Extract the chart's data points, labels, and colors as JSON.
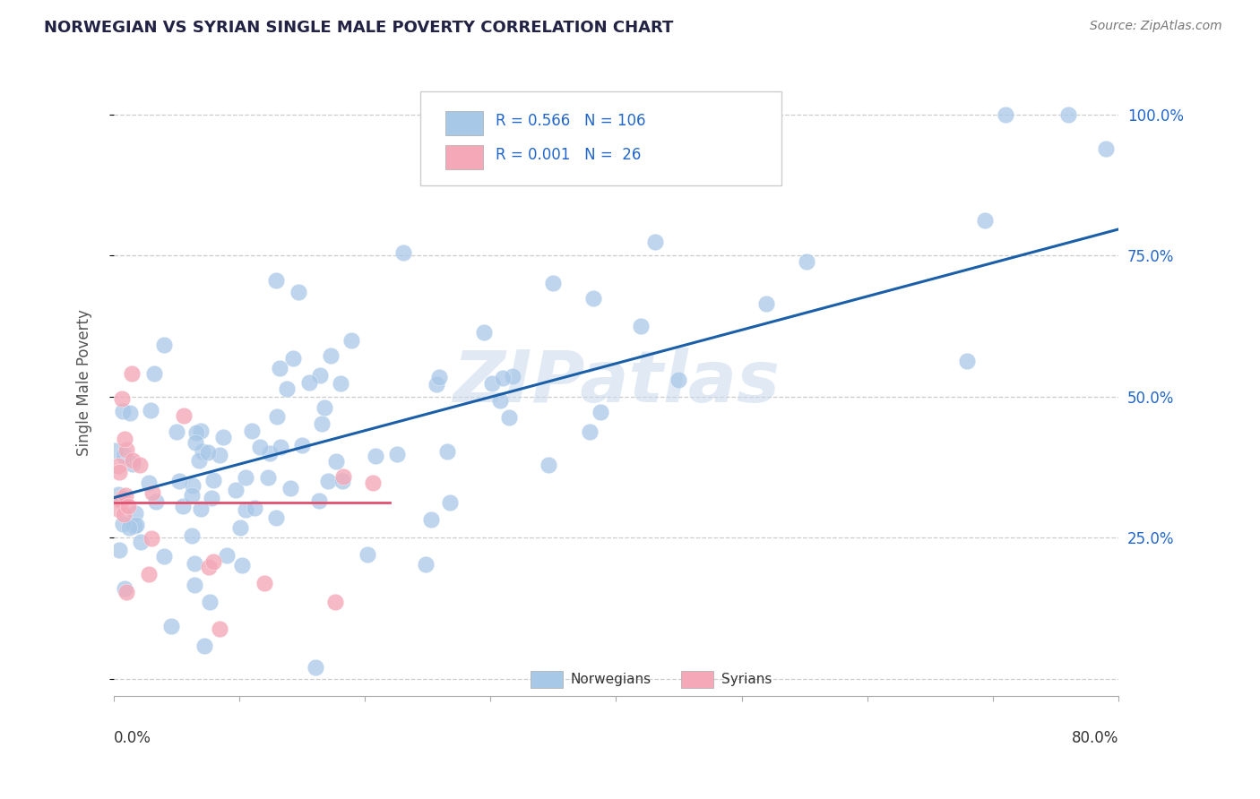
{
  "title": "NORWEGIAN VS SYRIAN SINGLE MALE POVERTY CORRELATION CHART",
  "source_text": "Source: ZipAtlas.com",
  "ylabel": "Single Male Poverty",
  "watermark": "ZIPatlas",
  "norwegian_R": 0.566,
  "norwegian_N": 106,
  "syrian_R": 0.001,
  "syrian_N": 26,
  "norwegian_color": "#a8c8e8",
  "norwegian_line_color": "#1a5fa8",
  "syrian_color": "#f4a8b8",
  "syrian_line_color": "#e05070",
  "title_color": "#222244",
  "legend_text_color": "#2266cc",
  "axis_label_color": "#555555",
  "background_color": "#ffffff",
  "xmin": 0.0,
  "xmax": 0.8,
  "ymin": -0.03,
  "ymax": 1.08,
  "yticks": [
    0.0,
    0.25,
    0.5,
    0.75,
    1.0
  ],
  "ytick_labels": [
    "",
    "25.0%",
    "50.0%",
    "75.0%",
    "100.0%"
  ]
}
